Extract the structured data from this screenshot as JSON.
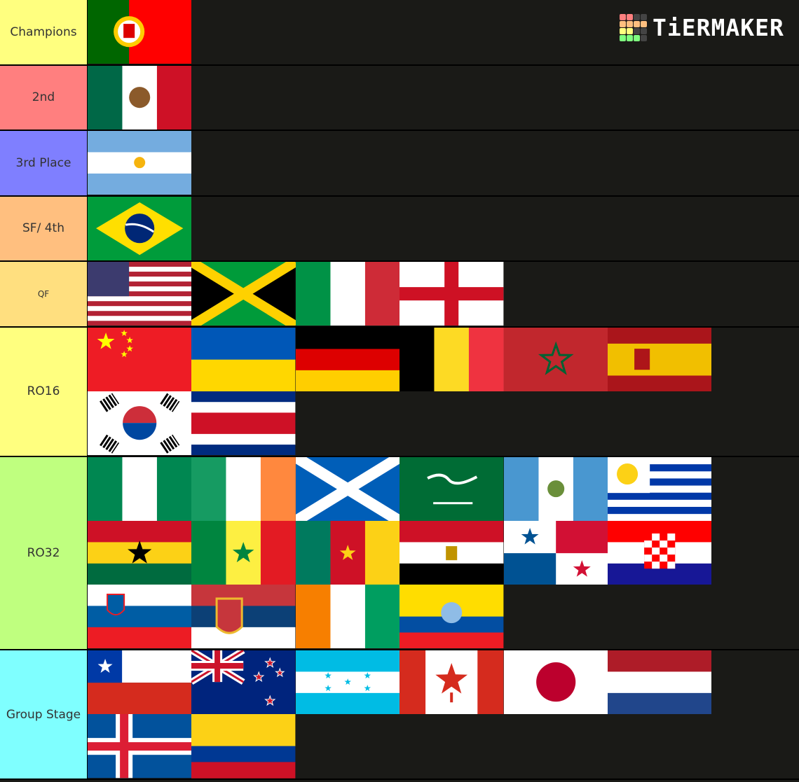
{
  "logo": {
    "text": "TiERMAKER",
    "grid_colors": [
      "#ff7f7f",
      "#ff7f7f",
      "#444",
      "#444",
      "#ffbf7f",
      "#ffbf7f",
      "#ffbf7f",
      "#ffbf7f",
      "#ffff7f",
      "#ffff7f",
      "#444",
      "#444",
      "#7fff7f",
      "#7fff7f",
      "#7fff7f",
      "#444"
    ]
  },
  "tiers": [
    {
      "label": "Champions",
      "color": "#ffff7f",
      "items": [
        "portugal"
      ]
    },
    {
      "label": "2nd",
      "color": "#ff7f7f",
      "items": [
        "mexico"
      ]
    },
    {
      "label": "3rd Place",
      "color": "#7f7fff",
      "items": [
        "argentina"
      ]
    },
    {
      "label": "SF/ 4th",
      "color": "#ffbf7f",
      "items": [
        "brazil"
      ]
    },
    {
      "label": "QF",
      "color": "#ffdf7f",
      "small": true,
      "items": [
        "usa",
        "jamaica",
        "italy",
        "england"
      ]
    },
    {
      "label": "RO16",
      "color": "#ffff7f",
      "items": [
        "china",
        "ukraine",
        "germany",
        "belgium",
        "morocco",
        "spain",
        "south-korea",
        "costa-rica"
      ]
    },
    {
      "label": "RO32",
      "color": "#bfff7f",
      "items": [
        "nigeria",
        "ireland",
        "scotland",
        "saudi-arabia",
        "guatemala",
        "uruguay",
        "ghana",
        "senegal",
        "cameroon",
        "egypt",
        "panama",
        "croatia",
        "slovenia",
        "serbia",
        "ivory-coast",
        "ecuador"
      ]
    },
    {
      "label": "Group Stage",
      "color": "#7fffff",
      "items": [
        "chile",
        "new-zealand",
        "honduras",
        "canada",
        "japan",
        "netherlands",
        "iceland",
        "colombia"
      ]
    }
  ]
}
